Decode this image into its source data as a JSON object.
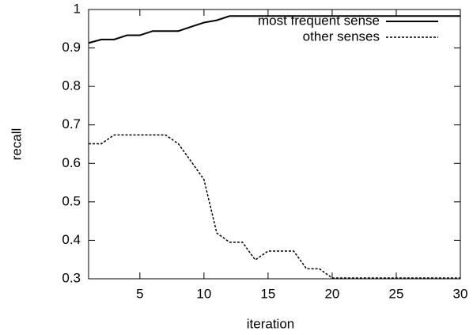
{
  "chart_data": {
    "type": "line",
    "xlabel": "iteration",
    "ylabel": "recall",
    "x": [
      1,
      2,
      3,
      4,
      5,
      6,
      7,
      8,
      9,
      10,
      11,
      12,
      13,
      14,
      15,
      16,
      17,
      18,
      19,
      20,
      21,
      22,
      23,
      24,
      25,
      26,
      27,
      28,
      29,
      30
    ],
    "series": [
      {
        "name": "most frequent sense",
        "color": "#000000",
        "dash": "solid",
        "values": [
          0.913,
          0.922,
          0.922,
          0.933,
          0.933,
          0.944,
          0.944,
          0.944,
          0.955,
          0.966,
          0.972,
          0.983,
          0.983,
          0.983,
          0.983,
          0.983,
          0.983,
          0.983,
          0.983,
          0.983,
          0.983,
          0.983,
          0.983,
          0.983,
          0.983,
          0.983,
          0.983,
          0.983,
          0.983,
          0.983
        ]
      },
      {
        "name": "other senses",
        "color": "#000000",
        "dash": "dashed",
        "values": [
          0.651,
          0.651,
          0.674,
          0.674,
          0.674,
          0.674,
          0.674,
          0.651,
          0.605,
          0.558,
          0.419,
          0.395,
          0.395,
          0.349,
          0.372,
          0.372,
          0.372,
          0.326,
          0.326,
          0.302,
          0.302,
          0.302,
          0.302,
          0.302,
          0.302,
          0.302,
          0.302,
          0.302,
          0.302,
          0.302
        ]
      }
    ],
    "xlim": [
      1,
      30
    ],
    "xticks": [
      5,
      10,
      15,
      20,
      25,
      30
    ],
    "ylim": [
      0.3,
      1
    ],
    "yticks": [
      0.3,
      0.4,
      0.5,
      0.6,
      0.7,
      0.8,
      0.9,
      1
    ],
    "legend": "top-right",
    "grid": false
  }
}
